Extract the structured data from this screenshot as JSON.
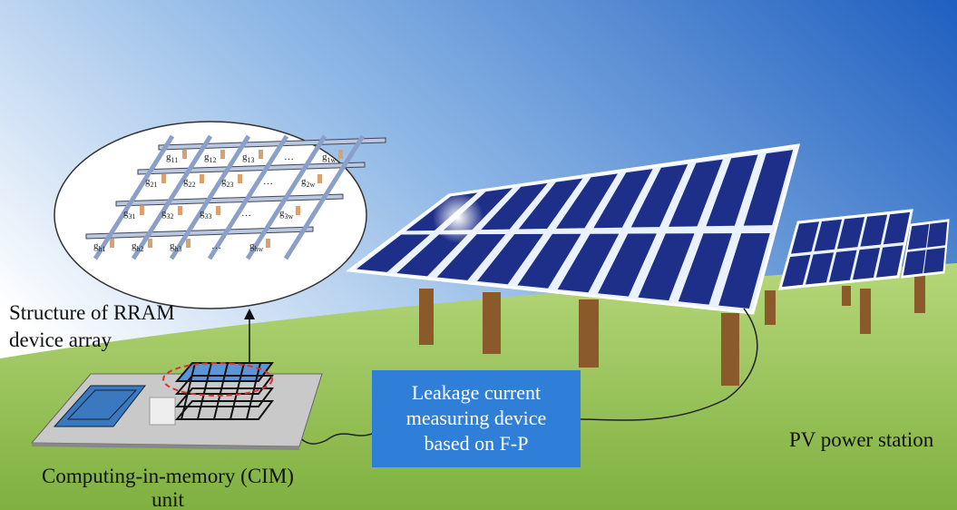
{
  "labels": {
    "rram": [
      "Structure of RRAM",
      "device array"
    ],
    "device": [
      "Leakage current",
      "measuring device",
      "based on F-P"
    ],
    "station": "PV power station",
    "cim": [
      "Computing-in-memory (CIM)",
      "unit"
    ]
  },
  "array": {
    "symbol": "g",
    "ellipsis": "…",
    "rows": [
      [
        "11",
        "12",
        "13",
        "1w"
      ],
      [
        "21",
        "22",
        "23",
        "2w"
      ],
      [
        "31",
        "32",
        "33",
        "3w"
      ],
      [
        "h1",
        "h2",
        "h3",
        "hw"
      ]
    ]
  }
}
